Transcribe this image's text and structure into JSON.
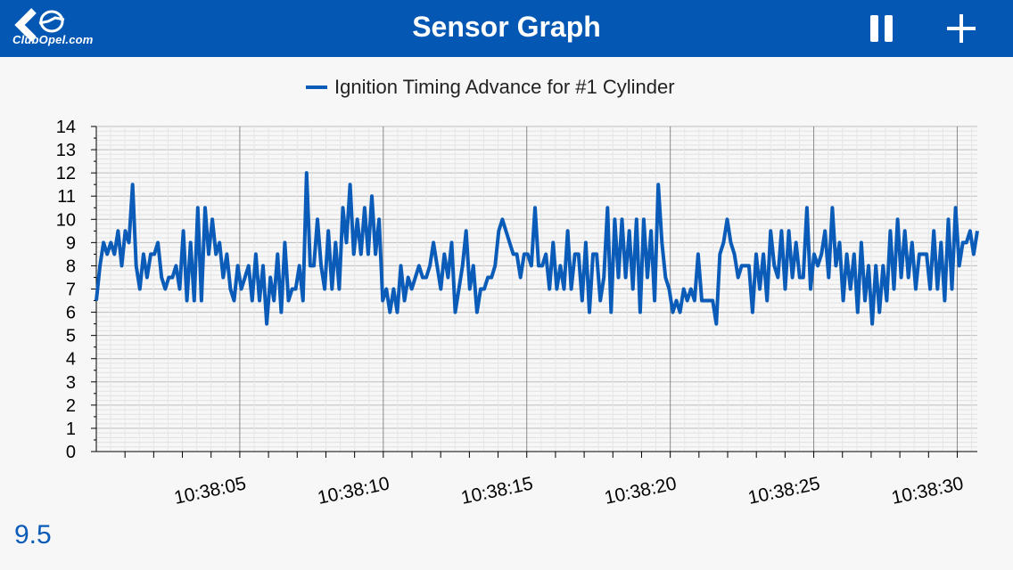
{
  "header": {
    "logo_text": "ClubOpel.com",
    "title": "Sensor Graph",
    "pause_icon": "pause-icon",
    "add_icon": "plus-icon",
    "background": "#0457b3"
  },
  "readout": {
    "current_value": "9.5"
  },
  "chart_data": {
    "type": "line",
    "title": "",
    "xlabel": "",
    "ylabel": "",
    "legend": [
      "Ignition Timing Advance for #1 Cylinder"
    ],
    "legend_position": "top-center",
    "grid": true,
    "ylim": [
      0,
      14
    ],
    "yticks": [
      "0",
      "1",
      "2",
      "3",
      "4",
      "5",
      "6",
      "7",
      "8",
      "9",
      "10",
      "11",
      "12",
      "13",
      "14"
    ],
    "xlim_seconds": [
      0.0,
      30.7
    ],
    "xticks": [
      "10:38:05",
      "10:38:10",
      "10:38:15",
      "10:38:20",
      "10:38:25",
      "10:38:30"
    ],
    "xtick_seconds": [
      5,
      10,
      15,
      20,
      25,
      30
    ],
    "series": [
      {
        "name": "Ignition Timing Advance for #1 Cylinder",
        "color": "#0a5cb8",
        "values": [
          6.5,
          8,
          9,
          8.5,
          9,
          8.5,
          9.5,
          8,
          9.5,
          9,
          11.5,
          8,
          7,
          8.5,
          7.5,
          8.5,
          8.5,
          9,
          7.5,
          7,
          7.5,
          7.5,
          8,
          7,
          9.5,
          6.5,
          9,
          6.5,
          10.5,
          6.5,
          10.5,
          8.5,
          10,
          8.5,
          9,
          7.5,
          8.5,
          7,
          6.5,
          8,
          7,
          7.5,
          8,
          6.5,
          8.5,
          6.5,
          8,
          5.5,
          7.5,
          6.5,
          8.5,
          6,
          9,
          6.5,
          7,
          7,
          8,
          6.5,
          12,
          8,
          8,
          10,
          8,
          7,
          9.5,
          7,
          9,
          7,
          10.5,
          9,
          11.5,
          8.5,
          10,
          8.5,
          10.5,
          8.5,
          11,
          8.5,
          10,
          6.5,
          7,
          6,
          7,
          6,
          8,
          6.5,
          7.5,
          7,
          7.5,
          8,
          7.5,
          7.5,
          8,
          9,
          8,
          7,
          8.5,
          7.5,
          9,
          6,
          7,
          8,
          9.5,
          7,
          8,
          6,
          7,
          7,
          7.5,
          7.5,
          8,
          9.5,
          10,
          9.5,
          9,
          8.5,
          8.5,
          7.5,
          8.5,
          8.5,
          8,
          10.5,
          8,
          8,
          8.5,
          7,
          9,
          7,
          8,
          7,
          9.5,
          7,
          8.5,
          8.5,
          6.5,
          9,
          6,
          8.5,
          8.5,
          6.5,
          7.5,
          10.5,
          6,
          10,
          7.5,
          10,
          7.5,
          9.5,
          7,
          10,
          6,
          10,
          7.5,
          9.5,
          6.5,
          11.5,
          9,
          7.5,
          7,
          6,
          6.5,
          6,
          7,
          6.5,
          7,
          6.5,
          8.5,
          6.5,
          6.5,
          6.5,
          6.5,
          5.5,
          8.5,
          9,
          10,
          9,
          8.5,
          7.5,
          8,
          8,
          8,
          6,
          8.5,
          7,
          8.5,
          6.5,
          9.5,
          8,
          7.5,
          9.5,
          7,
          9.5,
          7.5,
          9,
          7.5,
          7.5,
          10.5,
          7,
          8.5,
          8,
          8.5,
          9.5,
          7.5,
          10.5,
          8,
          9,
          6.5,
          8.5,
          7,
          8.5,
          6,
          9,
          6.5,
          8,
          5.5,
          8,
          6,
          8,
          6.5,
          9.5,
          7,
          10,
          7.5,
          9.5,
          7.5,
          9,
          7,
          8.5,
          8.5,
          8.5,
          7,
          9.5,
          7,
          9,
          6.5,
          10,
          7,
          10.5,
          8,
          9,
          9,
          9.5,
          8.5,
          9.5
        ]
      }
    ]
  }
}
